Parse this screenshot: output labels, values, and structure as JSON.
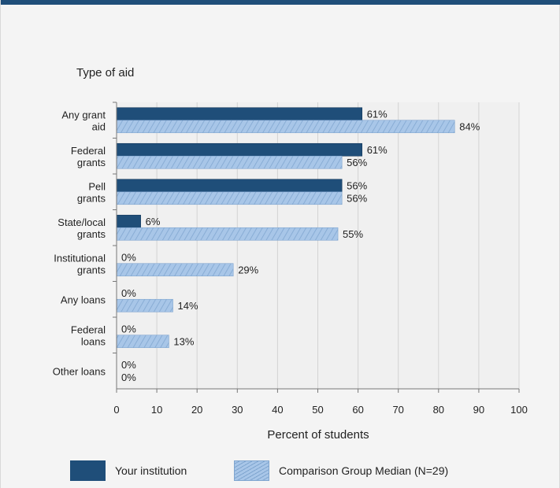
{
  "chart_data": {
    "type": "bar",
    "orientation": "horizontal",
    "title": "Type of aid",
    "xlabel": "Percent of students",
    "xlim": [
      0,
      100
    ],
    "xticks": [
      0,
      10,
      20,
      30,
      40,
      50,
      60,
      70,
      80,
      90,
      100
    ],
    "categories": [
      [
        "Any grant",
        "aid"
      ],
      [
        "Federal",
        "grants"
      ],
      [
        "Pell",
        "grants"
      ],
      [
        "State/local",
        "grants"
      ],
      [
        "Institutional",
        "grants"
      ],
      [
        "Any loans"
      ],
      [
        "Federal",
        "loans"
      ],
      [
        "Other loans"
      ]
    ],
    "series": [
      {
        "name": "Your institution",
        "values": [
          61,
          61,
          56,
          6,
          0,
          0,
          0,
          0
        ],
        "labels": [
          "61%",
          "61%",
          "56%",
          "6%",
          "0%",
          "0%",
          "0%",
          "0%"
        ],
        "color": "#1f4e79"
      },
      {
        "name": "Comparison Group Median (N=29)",
        "values": [
          84,
          56,
          56,
          55,
          29,
          14,
          13,
          0
        ],
        "labels": [
          "84%",
          "56%",
          "56%",
          "55%",
          "29%",
          "14%",
          "13%",
          "0%"
        ],
        "color": "#a8c6e8"
      }
    ],
    "grid": true,
    "legend": "bottom"
  },
  "legend": {
    "primary_label": "Your institution",
    "comparison_label": "Comparison Group Median (N=29)"
  },
  "colors": {
    "primary": "#1f4e79",
    "comparison": "#a8c6e8",
    "comparison_hatch": "#7fa5cf",
    "plot_background": "#f0f0f0",
    "grid": "#d3d3d3",
    "top_bar": "#1f4e79"
  }
}
